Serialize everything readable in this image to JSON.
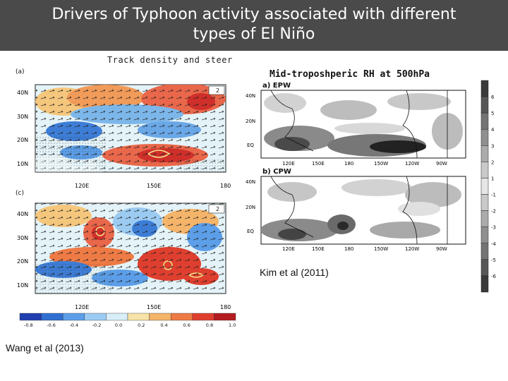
{
  "slide": {
    "title_line1": "Drivers of Typhoon activity associated with different",
    "title_line2": "types of El Niño"
  },
  "left_figure": {
    "title": "Track density and steer",
    "panel_a_label": "(a)",
    "panel_c_label": "(c)",
    "lat_labels": [
      "40N",
      "30N",
      "20N",
      "10N"
    ],
    "lon_labels": [
      "120E",
      "150E",
      "180"
    ],
    "vector_ref": "2",
    "colorbar_ticks": [
      "-0.8",
      "-0.6",
      "-0.4",
      "-0.2",
      "0.0",
      "0.2",
      "0.4",
      "0.6",
      "0.8",
      "1.0"
    ],
    "colorbar_colors": [
      "#1f3fb0",
      "#2f6fd0",
      "#5c9ee8",
      "#9ccbf2",
      "#d8eef8",
      "#f7e3a8",
      "#f4b46a",
      "#ee7a45",
      "#de3f2e",
      "#b51c20"
    ],
    "caption": "Wang et al  (2013)"
  },
  "right_figure": {
    "title": "Mid-troposhperic RH at 500hPa",
    "panel_a_label": "a) EPW",
    "panel_b_label": "b) CPW",
    "lat_labels": [
      "40N",
      "20N",
      "EQ"
    ],
    "lon_labels": [
      "120E",
      "150E",
      "180",
      "150W",
      "120W",
      "90W"
    ],
    "colorbar_ticks": [
      "6",
      "5",
      "4",
      "3",
      "2",
      "1",
      "-1",
      "-2",
      "-3",
      "-4",
      "-5",
      "-6"
    ],
    "colorbar_colors": [
      "#3a3a3a",
      "#575757",
      "#747474",
      "#8f8f8f",
      "#ababab",
      "#c9c9c9",
      "#e6e6e6",
      "#c9c9c9",
      "#ababab",
      "#8f8f8f",
      "#747474",
      "#575757",
      "#3a3a3a"
    ],
    "caption": "Kim et al (2011)"
  }
}
